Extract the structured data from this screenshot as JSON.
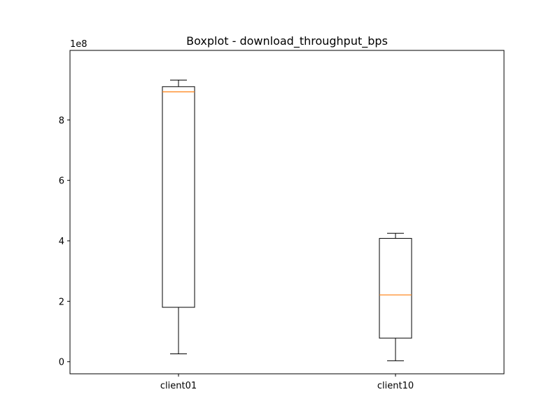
{
  "chart_data": {
    "type": "box",
    "title": "Boxplot - download_throughput_bps",
    "xlabel": "",
    "ylabel": "",
    "y_offset_label": "1e8",
    "ylim": [
      -0.4,
      10.3
    ],
    "yticks": [
      0,
      2,
      4,
      6,
      8
    ],
    "categories": [
      "client01",
      "client10"
    ],
    "boxes": [
      {
        "category": "client01",
        "whisker_low": 0.26,
        "q1": 1.8,
        "median": 8.93,
        "q3": 9.1,
        "whisker_high": 9.32
      },
      {
        "category": "client10",
        "whisker_low": 0.03,
        "q1": 0.78,
        "median": 2.21,
        "q3": 4.08,
        "whisker_high": 4.25
      }
    ],
    "colors": {
      "box": "#000000",
      "median": "#ff7f0e"
    }
  }
}
